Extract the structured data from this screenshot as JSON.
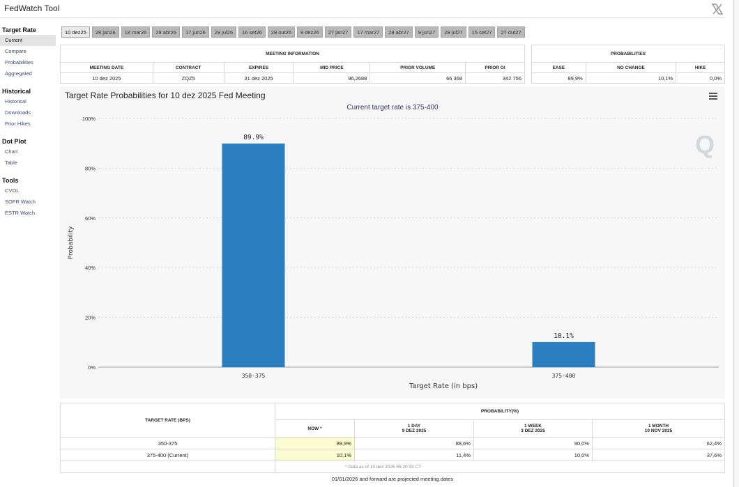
{
  "app": {
    "title": "FedWatch Tool"
  },
  "sidebar": {
    "sections": [
      {
        "heading": "Target Rate",
        "items": [
          "Current",
          "Compare",
          "Probabilities",
          "Aggregated"
        ]
      },
      {
        "heading": "Historical",
        "items": [
          "Historical",
          "Downloads",
          "Prior Hikes"
        ]
      },
      {
        "heading": "Dot Plot",
        "items": [
          "Chart",
          "Table"
        ]
      },
      {
        "heading": "Tools",
        "items": [
          "CVOL",
          "SOFR Watch",
          "ESTR Watch"
        ]
      }
    ],
    "active_item": "Current"
  },
  "tabs": [
    "10 dez25",
    "28 jan26",
    "18 mar26",
    "29 abr26",
    "17 jun26",
    "29 jul26",
    "16 set26",
    "28 out26",
    "9 dez26",
    "27 jan27",
    "17 mar27",
    "28 abr27",
    "9 jun27",
    "28 jul27",
    "15 set27",
    "27 out27"
  ],
  "active_tab": "10 dez25",
  "meeting_info": {
    "heading": "MEETING INFORMATION",
    "columns": [
      "MEETING DATE",
      "CONTRACT",
      "EXPIRES",
      "MID PRICE",
      "PRIOR VOLUME",
      "PRIOR OI"
    ],
    "values": [
      "10 dez 2025",
      "ZQZ5",
      "31 dez 2025",
      "96,2688",
      "66 368",
      "342 756"
    ]
  },
  "probabilities": {
    "heading": "PROBABILITIES",
    "columns": [
      "EASE",
      "NO CHANGE",
      "HIKE"
    ],
    "values": [
      "89,9%",
      "10,1%",
      "0,0%"
    ]
  },
  "chart": {
    "title": "Target Rate Probabilities for 10 dez 2025 Fed Meeting",
    "subtitle": "Current target rate is 375-400",
    "menu_icon": "hamburger-menu-icon",
    "watermark_icon": "q-logo-icon",
    "bar_color": "#2b7fc0"
  },
  "chart_data": {
    "type": "bar",
    "title": "Target Rate Probabilities for 10 dez 2025 Fed Meeting",
    "subtitle": "Current target rate is 375-400",
    "categories": [
      "350-375",
      "375-400"
    ],
    "values": [
      89.9,
      10.1
    ],
    "data_labels": [
      "89.9%",
      "10.1%"
    ],
    "xlabel": "Target Rate (in bps)",
    "ylabel": "Probability",
    "yticks": [
      "0%",
      "20%",
      "40%",
      "60%",
      "80%",
      "100%"
    ],
    "ylim": [
      0,
      100
    ],
    "grid": true
  },
  "rate_table": {
    "col_header": "TARGET RATE (BPS)",
    "prob_header": "PROBABILITY(%)",
    "periods": [
      {
        "label": "NOW *",
        "date": ""
      },
      {
        "label": "1 DAY",
        "date": "9 DEZ 2025"
      },
      {
        "label": "1 WEEK",
        "date": "3 DEZ 2025"
      },
      {
        "label": "1 MONTH",
        "date": "10 NOV 2025"
      }
    ],
    "rows": [
      {
        "rate": "350-375",
        "values": [
          "89,9%",
          "88,6%",
          "90,0%",
          "62,4%"
        ]
      },
      {
        "rate": "375-400 (Current)",
        "values": [
          "10,1%",
          "11,4%",
          "10,0%",
          "37,6%"
        ]
      }
    ],
    "note": "* Data as of 10 dez 2025 05:20:33 CT"
  },
  "footer_note": "01/01/2026 and forward are projected meeting dates"
}
